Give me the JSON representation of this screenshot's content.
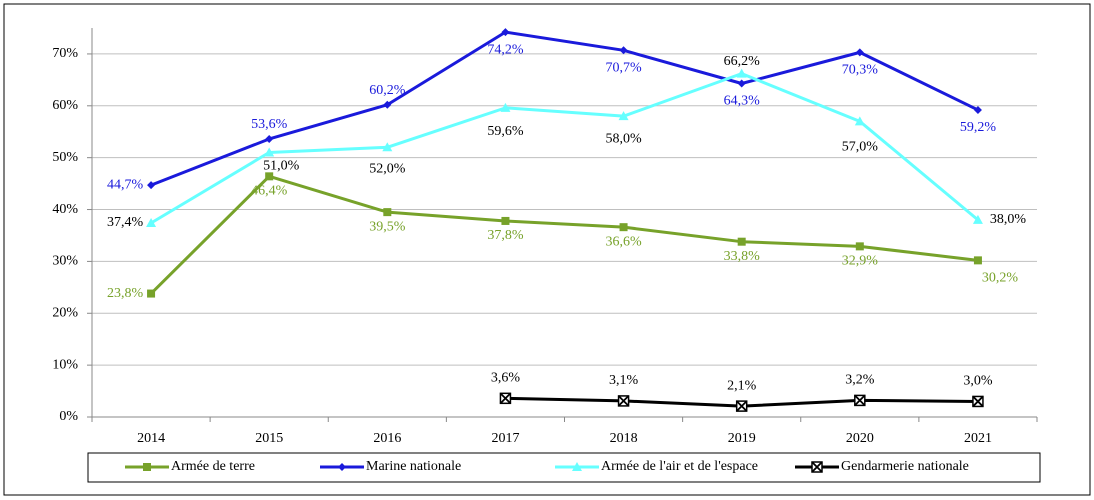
{
  "chart_data": {
    "type": "line",
    "categories": [
      "2014",
      "2015",
      "2016",
      "2017",
      "2018",
      "2019",
      "2020",
      "2021"
    ],
    "ylim": [
      0,
      75
    ],
    "yticks": [
      {
        "value": 0,
        "label": "0%"
      },
      {
        "value": 10,
        "label": "10%"
      },
      {
        "value": 20,
        "label": "20%"
      },
      {
        "value": 30,
        "label": "30%"
      },
      {
        "value": 40,
        "label": "40%"
      },
      {
        "value": 50,
        "label": "50%"
      },
      {
        "value": 60,
        "label": "60%"
      },
      {
        "value": 70,
        "label": "70%"
      }
    ],
    "grid": true,
    "legend": "bottom",
    "series": [
      {
        "name": "Armée de terre",
        "color": "#77a22a",
        "label_color": "#77a22a",
        "marker": "square",
        "values": [
          23.8,
          46.4,
          39.5,
          37.8,
          36.6,
          33.8,
          32.9,
          30.2
        ],
        "value_labels": [
          "23,8%",
          "46,4%",
          "39,5%",
          "37,8%",
          "36,6%",
          "33,8%",
          "32,9%",
          "30,2%"
        ]
      },
      {
        "name": "Marine nationale",
        "color": "#1a1adb",
        "label_color": "#1a1adb",
        "marker": "diamond",
        "values": [
          44.7,
          53.6,
          60.2,
          74.2,
          70.7,
          64.3,
          70.3,
          59.2
        ],
        "value_labels": [
          "44,7%",
          "53,6%",
          "60,2%",
          "74,2%",
          "70,7%",
          "64,3%",
          "70,3%",
          "59,2%"
        ]
      },
      {
        "name": "Armée de l'air et de l'espace",
        "color": "#66ffff",
        "label_color": "#000000",
        "marker": "triangle",
        "values": [
          37.4,
          51.0,
          52.0,
          59.6,
          58.0,
          66.2,
          57.0,
          38.0
        ],
        "value_labels": [
          "37,4%",
          "51,0%",
          "52,0%",
          "59,6%",
          "58,0%",
          "66,2%",
          "57,0%",
          "38,0%"
        ]
      },
      {
        "name": "Gendarmerie nationale",
        "color": "#000000",
        "label_color": "#000000",
        "marker": "xbox",
        "values": [
          null,
          null,
          null,
          3.6,
          3.1,
          2.1,
          3.2,
          3.0
        ],
        "value_labels": [
          null,
          null,
          null,
          "3,6%",
          "3,1%",
          "2,1%",
          "3,2%",
          "3,0%"
        ]
      }
    ]
  }
}
